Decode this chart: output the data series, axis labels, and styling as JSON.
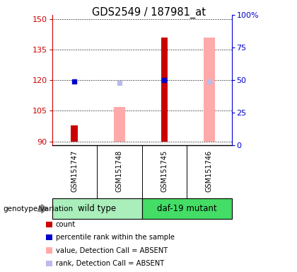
{
  "title": "GDS2549 / 187981_at",
  "samples": [
    "GSM151747",
    "GSM151748",
    "GSM151745",
    "GSM151746"
  ],
  "ylim_left": [
    88,
    152
  ],
  "ylim_right": [
    0,
    100
  ],
  "yticks_left": [
    90,
    105,
    120,
    135,
    150
  ],
  "ytick_labels_right": [
    "0",
    "25",
    "50",
    "75",
    "100%"
  ],
  "yticks_right": [
    0,
    25,
    50,
    75,
    100
  ],
  "red_bars": {
    "GSM151747": [
      90,
      98
    ],
    "GSM151748": [
      null,
      null
    ],
    "GSM151745": [
      90,
      141
    ],
    "GSM151746": [
      null,
      null
    ]
  },
  "pink_bars": {
    "GSM151747": [
      null,
      null
    ],
    "GSM151748": [
      90,
      107
    ],
    "GSM151745": [
      null,
      null
    ],
    "GSM151746": [
      90,
      141
    ]
  },
  "blue_dots_y": {
    "GSM151747": 119.5,
    "GSM151748": null,
    "GSM151745": 120.0,
    "GSM151746": null
  },
  "lavender_dots_y": {
    "GSM151747": null,
    "GSM151748": 118.8,
    "GSM151745": null,
    "GSM151746": 119.5
  },
  "legend_items": [
    {
      "color": "#cc0000",
      "label": "count"
    },
    {
      "color": "#0000cc",
      "label": "percentile rank within the sample"
    },
    {
      "color": "#ffaaaa",
      "label": "value, Detection Call = ABSENT"
    },
    {
      "color": "#bbbbee",
      "label": "rank, Detection Call = ABSENT"
    }
  ],
  "genotype_label": "genotype/variation",
  "group_names": [
    "wild type",
    "daf-19 mutant"
  ],
  "wt_color": "#aaeebb",
  "mut_color": "#44dd66",
  "sample_box_color": "#cccccc",
  "bg_color": "#ffffff",
  "axis_color_left": "#cc0000",
  "axis_color_right": "#0000cc",
  "bar_width": 0.25
}
